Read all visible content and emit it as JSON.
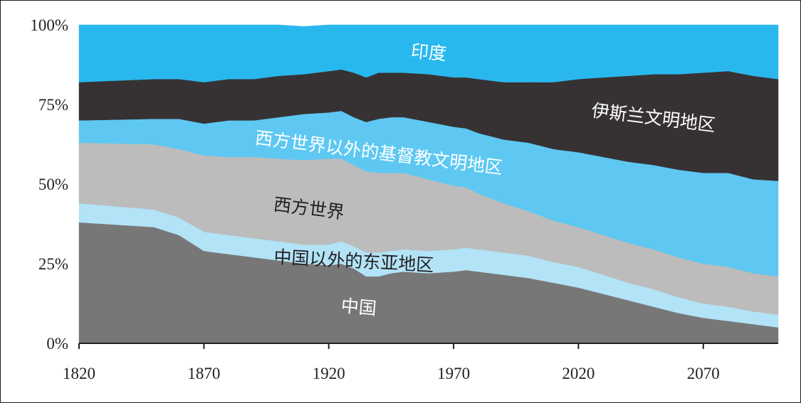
{
  "chart_data": {
    "type": "area",
    "stacked": true,
    "x": [
      1820,
      1850,
      1860,
      1870,
      1880,
      1890,
      1900,
      1910,
      1920,
      1925,
      1930,
      1935,
      1940,
      1945,
      1950,
      1960,
      1970,
      1975,
      1980,
      1990,
      2000,
      2010,
      2020,
      2030,
      2040,
      2050,
      2060,
      2070,
      2080,
      2090,
      2100
    ],
    "xlim": [
      1820,
      2100
    ],
    "ylim": [
      0,
      100
    ],
    "x_ticks": [
      1820,
      1870,
      1920,
      1970,
      2020,
      2070
    ],
    "y_ticks": [
      0,
      25,
      50,
      75,
      100
    ],
    "y_tick_labels": [
      "0%",
      "25%",
      "50%",
      "75%",
      "100%"
    ],
    "grid": false,
    "legend": "none",
    "series": [
      {
        "name": "中国",
        "color": "#777777",
        "label_color": "#ffffff",
        "values": [
          38.0,
          36.5,
          34.0,
          29.0,
          28.0,
          27.0,
          26.0,
          25.0,
          24.5,
          25.0,
          23.5,
          21.0,
          21.0,
          22.0,
          22.5,
          22.0,
          22.5,
          23.0,
          22.5,
          21.5,
          20.5,
          19.0,
          17.5,
          15.5,
          13.5,
          11.5,
          9.5,
          8.0,
          7.0,
          6.0,
          5.0
        ]
      },
      {
        "name": "中国以外的东亚地区",
        "color": "#b2e3f7",
        "label_color": "#231f20",
        "values": [
          6.0,
          5.5,
          5.5,
          6.0,
          6.0,
          6.0,
          6.0,
          6.0,
          6.5,
          7.0,
          7.0,
          7.5,
          7.5,
          7.0,
          7.0,
          7.0,
          7.0,
          7.0,
          7.0,
          7.0,
          7.0,
          6.5,
          6.5,
          6.0,
          5.5,
          5.5,
          5.0,
          4.5,
          4.5,
          4.0,
          4.0
        ]
      },
      {
        "name": "西方世界",
        "color": "#bcbcbc",
        "label_color": "#231f20",
        "values": [
          19.0,
          20.5,
          21.5,
          24.0,
          24.5,
          25.5,
          26.0,
          26.5,
          27.0,
          26.0,
          25.5,
          25.5,
          25.0,
          24.5,
          24.0,
          22.5,
          20.0,
          19.0,
          17.5,
          15.5,
          14.0,
          13.0,
          12.5,
          12.5,
          12.5,
          12.5,
          12.5,
          12.5,
          12.5,
          12.0,
          12.0
        ]
      },
      {
        "name": "西方世界以外的基督教文明地区",
        "color": "#5ec8f2",
        "label_color": "#ffffff",
        "values": [
          7.0,
          8.0,
          9.5,
          10.0,
          11.5,
          11.5,
          13.0,
          14.5,
          14.5,
          15.0,
          15.0,
          15.5,
          17.0,
          17.5,
          17.5,
          18.0,
          18.5,
          18.5,
          19.0,
          20.0,
          21.5,
          22.5,
          23.5,
          24.5,
          25.5,
          26.5,
          27.5,
          28.5,
          29.5,
          29.5,
          30.0
        ]
      },
      {
        "name": "伊斯兰文明地区",
        "color": "#363234",
        "label_color": "#ffffff",
        "values": [
          12.0,
          12.5,
          12.5,
          13.0,
          13.0,
          13.0,
          13.0,
          12.5,
          13.0,
          13.0,
          14.0,
          14.0,
          14.5,
          14.0,
          14.0,
          15.0,
          15.5,
          16.0,
          17.0,
          18.0,
          19.0,
          21.0,
          23.0,
          25.0,
          27.0,
          28.5,
          30.0,
          31.5,
          32.0,
          32.5,
          32.0
        ]
      },
      {
        "name": "印度",
        "color": "#29b8ee",
        "label_color": "#ffffff",
        "values": [
          18.0,
          17.0,
          17.0,
          18.0,
          17.0,
          17.0,
          16.0,
          15.0,
          14.5,
          14.0,
          15.0,
          16.5,
          15.0,
          15.0,
          15.0,
          15.5,
          16.5,
          16.5,
          17.0,
          18.0,
          18.0,
          18.0,
          17.0,
          16.5,
          16.0,
          15.5,
          15.5,
          15.0,
          14.5,
          16.0,
          17.0
        ]
      }
    ],
    "labels": [
      {
        "series": 5,
        "text": "印度",
        "x": 1960,
        "y": 91,
        "rotation": 5
      },
      {
        "series": 4,
        "text": "伊斯兰文明地区",
        "x": 2050,
        "y": 70.5,
        "rotation": 7
      },
      {
        "series": 3,
        "text": "西方世界以外的基督教文明地区",
        "x": 1940,
        "y": 59.5,
        "rotation": 7
      },
      {
        "series": 2,
        "text": "西方世界",
        "x": 1912,
        "y": 42,
        "rotation": 7
      },
      {
        "series": 1,
        "text": "中国以外的东亚地区",
        "x": 1930,
        "y": 25.5,
        "rotation": 3
      },
      {
        "series": 0,
        "text": "中国",
        "x": 1932,
        "y": 11,
        "rotation": 5
      }
    ]
  }
}
